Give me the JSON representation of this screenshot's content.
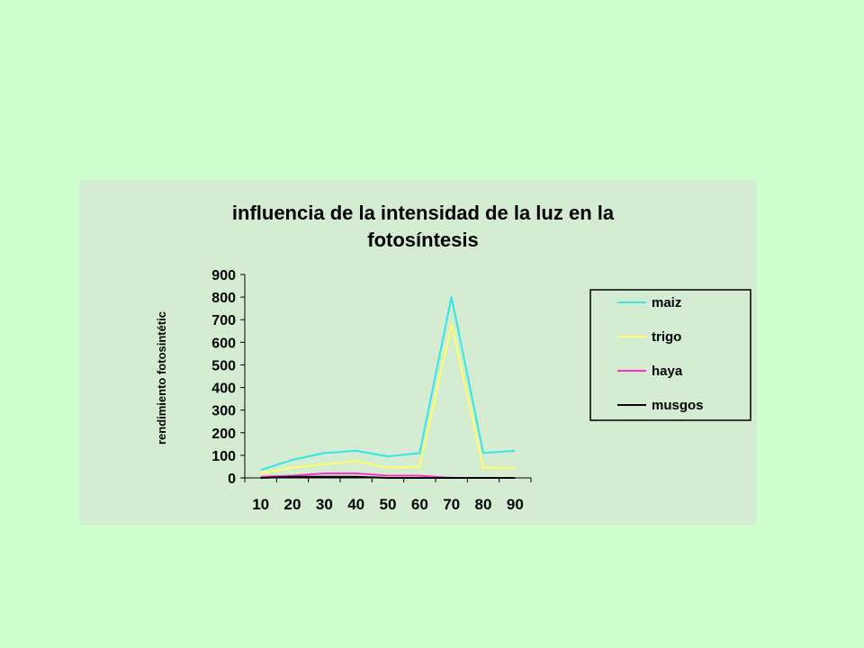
{
  "chart_data": {
    "type": "line",
    "title_lines": [
      "influencia de la intensidad de la luz en la",
      "fotosíntesis"
    ],
    "xlabel": "",
    "ylabel": "rendimiento fotosintétic",
    "categories": [
      10,
      20,
      30,
      40,
      50,
      60,
      70,
      80,
      90
    ],
    "ylim": [
      0,
      900
    ],
    "yticks": [
      0,
      100,
      200,
      300,
      400,
      500,
      600,
      700,
      800,
      900
    ],
    "grid": false,
    "legend_position": "right",
    "series": [
      {
        "name": "maiz",
        "color": "#33e6e6",
        "values": [
          35,
          80,
          110,
          120,
          95,
          110,
          800,
          110,
          120
        ]
      },
      {
        "name": "trigo",
        "color": "#ffff66",
        "values": [
          20,
          45,
          60,
          75,
          45,
          50,
          680,
          45,
          45
        ]
      },
      {
        "name": "haya",
        "color": "#ff33cc",
        "values": [
          5,
          10,
          20,
          20,
          10,
          10,
          0,
          0,
          0
        ]
      },
      {
        "name": "musgos",
        "color": "#000000",
        "values": [
          0,
          5,
          5,
          5,
          0,
          0,
          0,
          0,
          0
        ]
      }
    ]
  }
}
